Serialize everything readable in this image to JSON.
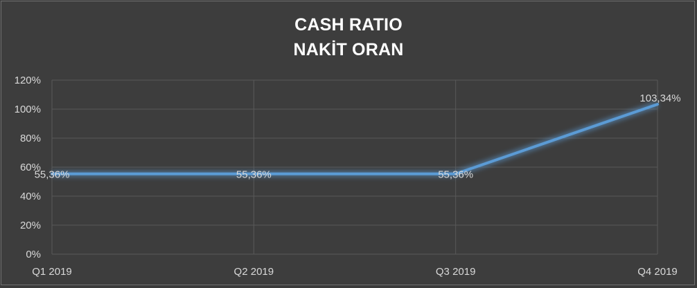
{
  "chart_data": {
    "type": "line",
    "title": "CASH RATIO",
    "subtitle": "NAKİT ORAN",
    "categories": [
      "Q1 2019",
      "Q2 2019",
      "Q3 2019",
      "Q4 2019"
    ],
    "series": [
      {
        "values": [
          55.36,
          55.36,
          55.36,
          103.34
        ],
        "labels": [
          "55,36%",
          "55,36%",
          "55,36%",
          "103,34%"
        ]
      }
    ],
    "y_ticks": [
      "0%",
      "20%",
      "40%",
      "60%",
      "80%",
      "100%",
      "120%"
    ],
    "ylim": [
      0,
      120
    ],
    "grid": true,
    "legend": "none",
    "colors": {
      "background": "#3d3d3d",
      "line": "#5b9bd5",
      "glow": "#5b9bd5",
      "grid": "#595959",
      "text": "#d9d9d9",
      "title": "#ffffff"
    }
  }
}
